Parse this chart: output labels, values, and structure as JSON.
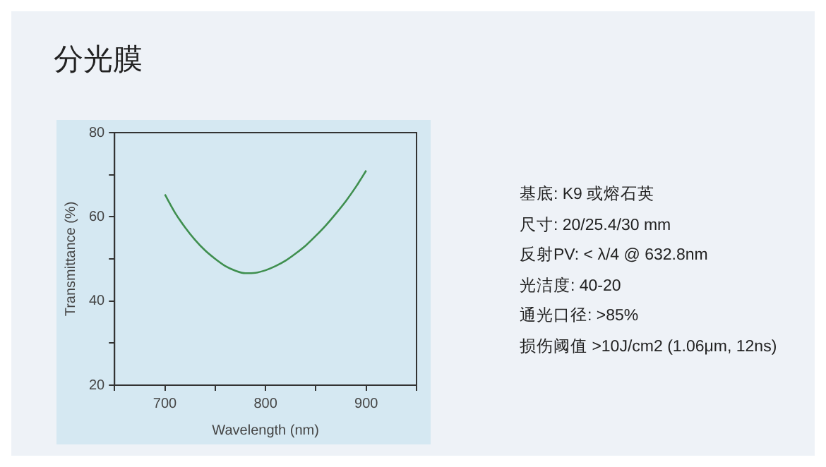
{
  "chart_data": {
    "type": "line",
    "title": "分光膜",
    "xlabel": "Wavelength (nm)",
    "ylabel": "Transmittance (%)",
    "x": [
      700,
      710,
      720,
      730,
      740,
      750,
      760,
      770,
      780,
      790,
      800,
      810,
      820,
      830,
      840,
      850,
      860,
      870,
      880,
      890,
      900
    ],
    "series": [
      {
        "color": "#3f8f4f",
        "values": [
          65.3,
          61.0,
          57.5,
          54.5,
          52.0,
          50.0,
          48.3,
          47.2,
          46.6,
          46.7,
          47.3,
          48.3,
          49.6,
          51.3,
          53.2,
          55.5,
          58.0,
          60.8,
          63.8,
          67.2,
          71.0
        ]
      }
    ],
    "xlim": [
      650,
      950
    ],
    "xticks": [
      {
        "value": 650,
        "label": null
      },
      700,
      {
        "value": 750,
        "label": null
      },
      800,
      {
        "value": 850,
        "label": null
      },
      900,
      {
        "value": 950,
        "label": null
      }
    ],
    "ylim": [
      20,
      80
    ],
    "yticks": [
      20,
      {
        "value": 30,
        "label": null
      },
      40,
      {
        "value": 50,
        "label": null
      },
      60,
      {
        "value": 70,
        "label": null
      },
      80
    ],
    "grid": false,
    "legend": false,
    "marker": "none",
    "line_style": "solid",
    "annotations": [
      "基底:  K9 或熔石英",
      "尺寸: 20/25.4/30 mm",
      "反射PV: < λ/4 @ 632.8nm",
      "光洁度:  40-20",
      "通光口径:  >85%",
      "损伤阈值  >10J/cm2 (1.06μm, 12ns)"
    ]
  }
}
